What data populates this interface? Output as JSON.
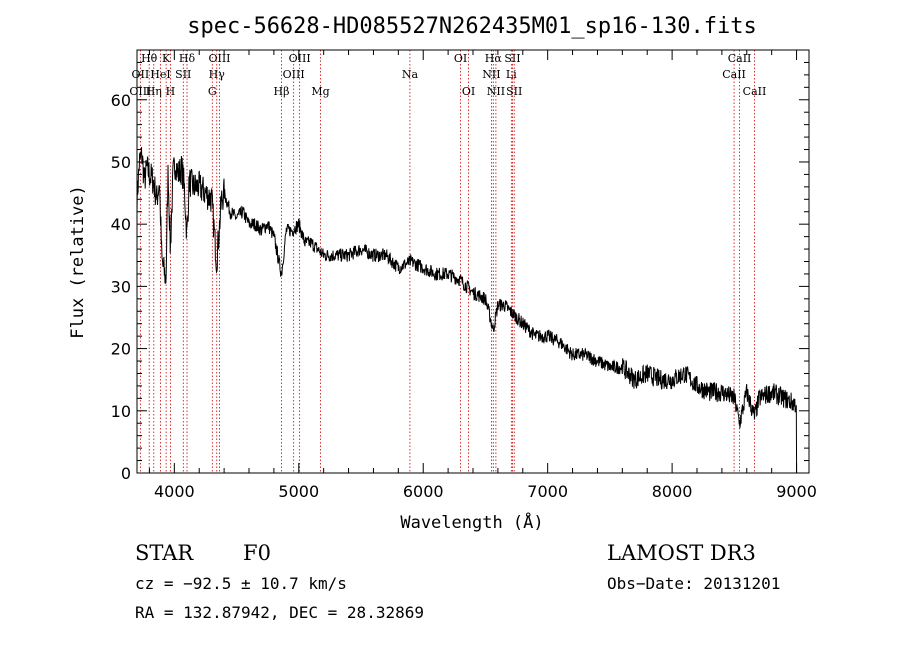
{
  "chart_data": {
    "type": "line",
    "title": "spec-56628-HD085527N262435M01_sp16-130.fits",
    "xlabel": "Wavelength (Å)",
    "ylabel": "Flux (relative)",
    "xlim": [
      3700,
      9100
    ],
    "ylim": [
      0,
      68
    ],
    "x_ticks": [
      4000,
      5000,
      6000,
      7000,
      8000,
      9000
    ],
    "y_ticks": [
      0,
      10,
      20,
      30,
      40,
      50,
      60
    ],
    "grid": false,
    "series": [
      {
        "name": "spectrum",
        "x": [
          3700,
          3720,
          3740,
          3760,
          3780,
          3800,
          3830,
          3860,
          3880,
          3900,
          3933,
          3950,
          3968,
          3990,
          4010,
          4030,
          4060,
          4080,
          4101,
          4120,
          4150,
          4200,
          4250,
          4300,
          4340,
          4380,
          4400,
          4450,
          4500,
          4550,
          4600,
          4650,
          4700,
          4750,
          4800,
          4861,
          4900,
          4950,
          5000,
          5050,
          5100,
          5150,
          5200,
          5300,
          5400,
          5500,
          5600,
          5700,
          5800,
          5900,
          6000,
          6100,
          6200,
          6300,
          6400,
          6500,
          6563,
          6600,
          6650,
          6700,
          6750,
          6800,
          6900,
          7000,
          7100,
          7200,
          7300,
          7400,
          7500,
          7600,
          7700,
          7800,
          7900,
          8000,
          8100,
          8200,
          8300,
          8400,
          8500,
          8542,
          8600,
          8662,
          8700,
          8800,
          8900,
          9000
        ],
        "y": [
          44,
          50,
          51,
          47,
          49,
          48,
          47,
          44,
          47,
          34,
          31,
          49,
          36,
          48,
          50,
          48,
          49,
          46,
          38,
          47,
          46,
          46,
          45,
          44,
          34,
          44,
          45,
          42,
          41,
          42,
          40,
          40,
          39,
          40,
          38,
          32,
          39,
          39,
          40,
          37,
          37,
          36,
          35,
          35,
          35,
          36,
          35,
          35,
          33,
          34,
          33,
          32,
          32,
          31,
          29,
          28,
          23,
          27,
          27,
          26,
          25,
          24,
          22,
          22,
          21,
          19,
          19,
          18,
          17,
          17,
          15,
          16,
          15,
          15,
          16,
          14,
          13,
          13,
          12,
          8,
          13,
          9,
          12,
          13,
          12,
          11
        ]
      }
    ],
    "line_labels": [
      {
        "label": "Hθ",
        "wavelength": 3798,
        "row": 1
      },
      {
        "label": "OII",
        "wavelength": 3727,
        "row": 2
      },
      {
        "label": "OIII",
        "wavelength": 3727,
        "row": 3
      },
      {
        "label": "K",
        "wavelength": 3934,
        "row": 1
      },
      {
        "label": "HeI",
        "wavelength": 3889,
        "row": 2
      },
      {
        "label": "Hη",
        "wavelength": 3835,
        "row": 3
      },
      {
        "label": "Hδ",
        "wavelength": 4102,
        "row": 1
      },
      {
        "label": "SII",
        "wavelength": 4072,
        "row": 2
      },
      {
        "label": "H",
        "wavelength": 3969,
        "row": 3
      },
      {
        "label": "OIII",
        "wavelength": 4363,
        "row": 1
      },
      {
        "label": "Hγ",
        "wavelength": 4341,
        "row": 2
      },
      {
        "label": "G",
        "wavelength": 4305,
        "row": 3
      },
      {
        "label": "OIII",
        "wavelength": 5007,
        "row": 1
      },
      {
        "label": "OIII",
        "wavelength": 4959,
        "row": 2
      },
      {
        "label": "Hβ",
        "wavelength": 4861,
        "row": 3
      },
      {
        "label": "Mg",
        "wavelength": 5175,
        "row": 3
      },
      {
        "label": "Na",
        "wavelength": 5893,
        "row": 2
      },
      {
        "label": "OI",
        "wavelength": 6300,
        "row": 1
      },
      {
        "label": "OI",
        "wavelength": 6364,
        "row": 3
      },
      {
        "label": "Hα",
        "wavelength": 6563,
        "row": 1
      },
      {
        "label": "SII",
        "wavelength": 6717,
        "row": 1
      },
      {
        "label": "NII",
        "wavelength": 6548,
        "row": 2
      },
      {
        "label": "Li",
        "wavelength": 6708,
        "row": 2
      },
      {
        "label": "NII",
        "wavelength": 6584,
        "row": 3
      },
      {
        "label": "SII",
        "wavelength": 6731,
        "row": 3
      },
      {
        "label": "CaII",
        "wavelength": 8542,
        "row": 1
      },
      {
        "label": "CaII",
        "wavelength": 8498,
        "row": 2
      },
      {
        "label": "CaII",
        "wavelength": 8662,
        "row": 3
      }
    ]
  },
  "info": {
    "class_label": "STAR",
    "subclass": "F0",
    "survey": "LAMOST DR3",
    "cz": "cz = −92.5 ± 10.7 km/s",
    "obs_date": "Obs−Date: 20131201",
    "radec": "RA = 132.87942, DEC =  28.32869"
  }
}
